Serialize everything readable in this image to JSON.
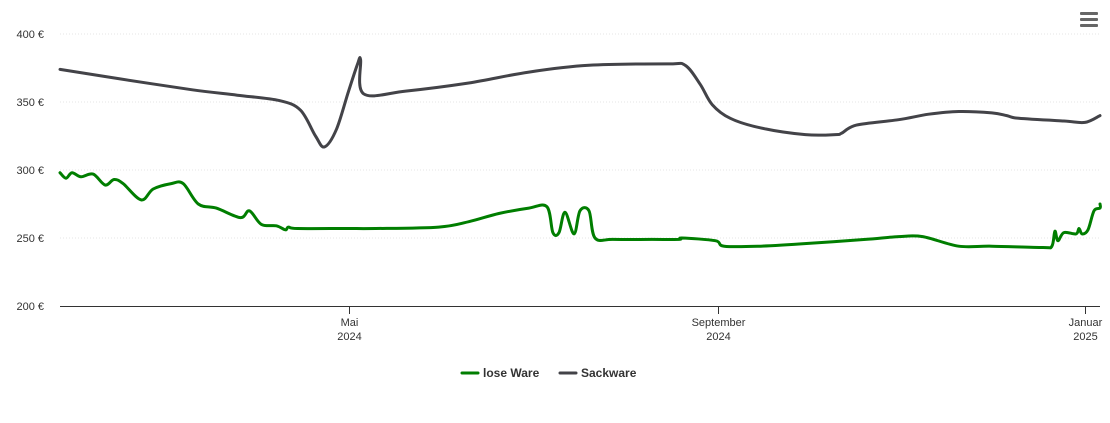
{
  "menu_icon": "hamburger-menu-icon",
  "chart_data": {
    "type": "line",
    "xlabel": "",
    "ylabel": "",
    "ylim": [
      200,
      400
    ],
    "yticks": [
      200,
      250,
      300,
      350,
      400
    ],
    "ytick_labels": [
      "200 €",
      "250 €",
      "300 €",
      "350 €",
      "400 €"
    ],
    "xlim": [
      "2024-01-26",
      "2025-01-06"
    ],
    "xticks": [
      {
        "date": "2024-05-01",
        "line1": "Mai",
        "line2": "2024"
      },
      {
        "date": "2024-09-01",
        "line1": "September",
        "line2": "2024"
      },
      {
        "date": "2025-01-01",
        "line1": "Januar",
        "line2": "2025"
      }
    ],
    "grid": true,
    "legend_position": "bottom-center",
    "series": [
      {
        "name": "lose Ware",
        "color": "#007e00",
        "points": [
          [
            "2024-01-26",
            298
          ],
          [
            "2024-01-28",
            294
          ],
          [
            "2024-01-30",
            298
          ],
          [
            "2024-02-02",
            295
          ],
          [
            "2024-02-06",
            297
          ],
          [
            "2024-02-10",
            289
          ],
          [
            "2024-02-13",
            293
          ],
          [
            "2024-02-16",
            290
          ],
          [
            "2024-02-22",
            278
          ],
          [
            "2024-02-26",
            286
          ],
          [
            "2024-03-03",
            290
          ],
          [
            "2024-03-07",
            290
          ],
          [
            "2024-03-12",
            275
          ],
          [
            "2024-03-18",
            272
          ],
          [
            "2024-03-26",
            265
          ],
          [
            "2024-03-29",
            270
          ],
          [
            "2024-04-02",
            260
          ],
          [
            "2024-04-07",
            259
          ],
          [
            "2024-04-10",
            256
          ],
          [
            "2024-04-11",
            258
          ],
          [
            "2024-04-14",
            257
          ],
          [
            "2024-04-30",
            257
          ],
          [
            "2024-05-10",
            257
          ],
          [
            "2024-05-31",
            258
          ],
          [
            "2024-06-10",
            262
          ],
          [
            "2024-06-20",
            268
          ],
          [
            "2024-06-30",
            272
          ],
          [
            "2024-07-06",
            273
          ],
          [
            "2024-07-08",
            254
          ],
          [
            "2024-07-10",
            254
          ],
          [
            "2024-07-12",
            269
          ],
          [
            "2024-07-15",
            253
          ],
          [
            "2024-07-17",
            270
          ],
          [
            "2024-07-20",
            270
          ],
          [
            "2024-07-22",
            250
          ],
          [
            "2024-07-28",
            249
          ],
          [
            "2024-08-10",
            249
          ],
          [
            "2024-08-19",
            249
          ],
          [
            "2024-08-20",
            250
          ],
          [
            "2024-08-31",
            248
          ],
          [
            "2024-09-03",
            244
          ],
          [
            "2024-09-15",
            244
          ],
          [
            "2024-10-01",
            246
          ],
          [
            "2024-10-20",
            249
          ],
          [
            "2024-10-31",
            251
          ],
          [
            "2024-11-08",
            251
          ],
          [
            "2024-11-20",
            244
          ],
          [
            "2024-12-01",
            244
          ],
          [
            "2024-12-18",
            243
          ],
          [
            "2024-12-21",
            244
          ],
          [
            "2024-12-22",
            255
          ],
          [
            "2024-12-23",
            248
          ],
          [
            "2024-12-25",
            254
          ],
          [
            "2024-12-29",
            253
          ],
          [
            "2024-12-30",
            257
          ],
          [
            "2024-12-31",
            253
          ],
          [
            "2025-01-02",
            256
          ],
          [
            "2025-01-04",
            270
          ],
          [
            "2025-01-06",
            272
          ],
          [
            "2025-01-06",
            275
          ]
        ]
      },
      {
        "name": "Sackware",
        "color": "#434348",
        "points": [
          [
            "2024-01-26",
            374
          ],
          [
            "2024-02-15",
            367
          ],
          [
            "2024-03-10",
            359
          ],
          [
            "2024-03-25",
            355
          ],
          [
            "2024-04-08",
            351
          ],
          [
            "2024-04-15",
            344
          ],
          [
            "2024-04-20",
            325
          ],
          [
            "2024-04-23",
            317
          ],
          [
            "2024-04-27",
            330
          ],
          [
            "2024-05-01",
            358
          ],
          [
            "2024-05-04",
            378
          ],
          [
            "2024-05-05",
            381
          ],
          [
            "2024-05-06",
            356
          ],
          [
            "2024-05-20",
            358
          ],
          [
            "2024-06-10",
            364
          ],
          [
            "2024-06-30",
            372
          ],
          [
            "2024-07-20",
            377
          ],
          [
            "2024-08-15",
            378
          ],
          [
            "2024-08-21",
            377
          ],
          [
            "2024-08-26",
            363
          ],
          [
            "2024-08-30",
            348
          ],
          [
            "2024-09-05",
            338
          ],
          [
            "2024-09-15",
            331
          ],
          [
            "2024-09-30",
            326
          ],
          [
            "2024-10-10",
            326
          ],
          [
            "2024-10-12",
            327
          ],
          [
            "2024-10-17",
            333
          ],
          [
            "2024-10-31",
            337
          ],
          [
            "2024-11-10",
            341
          ],
          [
            "2024-11-20",
            343
          ],
          [
            "2024-12-01",
            342
          ],
          [
            "2024-12-06",
            340
          ],
          [
            "2024-12-10",
            338
          ],
          [
            "2024-12-25",
            336
          ],
          [
            "2025-01-01",
            335
          ],
          [
            "2025-01-06",
            340
          ]
        ]
      }
    ]
  }
}
